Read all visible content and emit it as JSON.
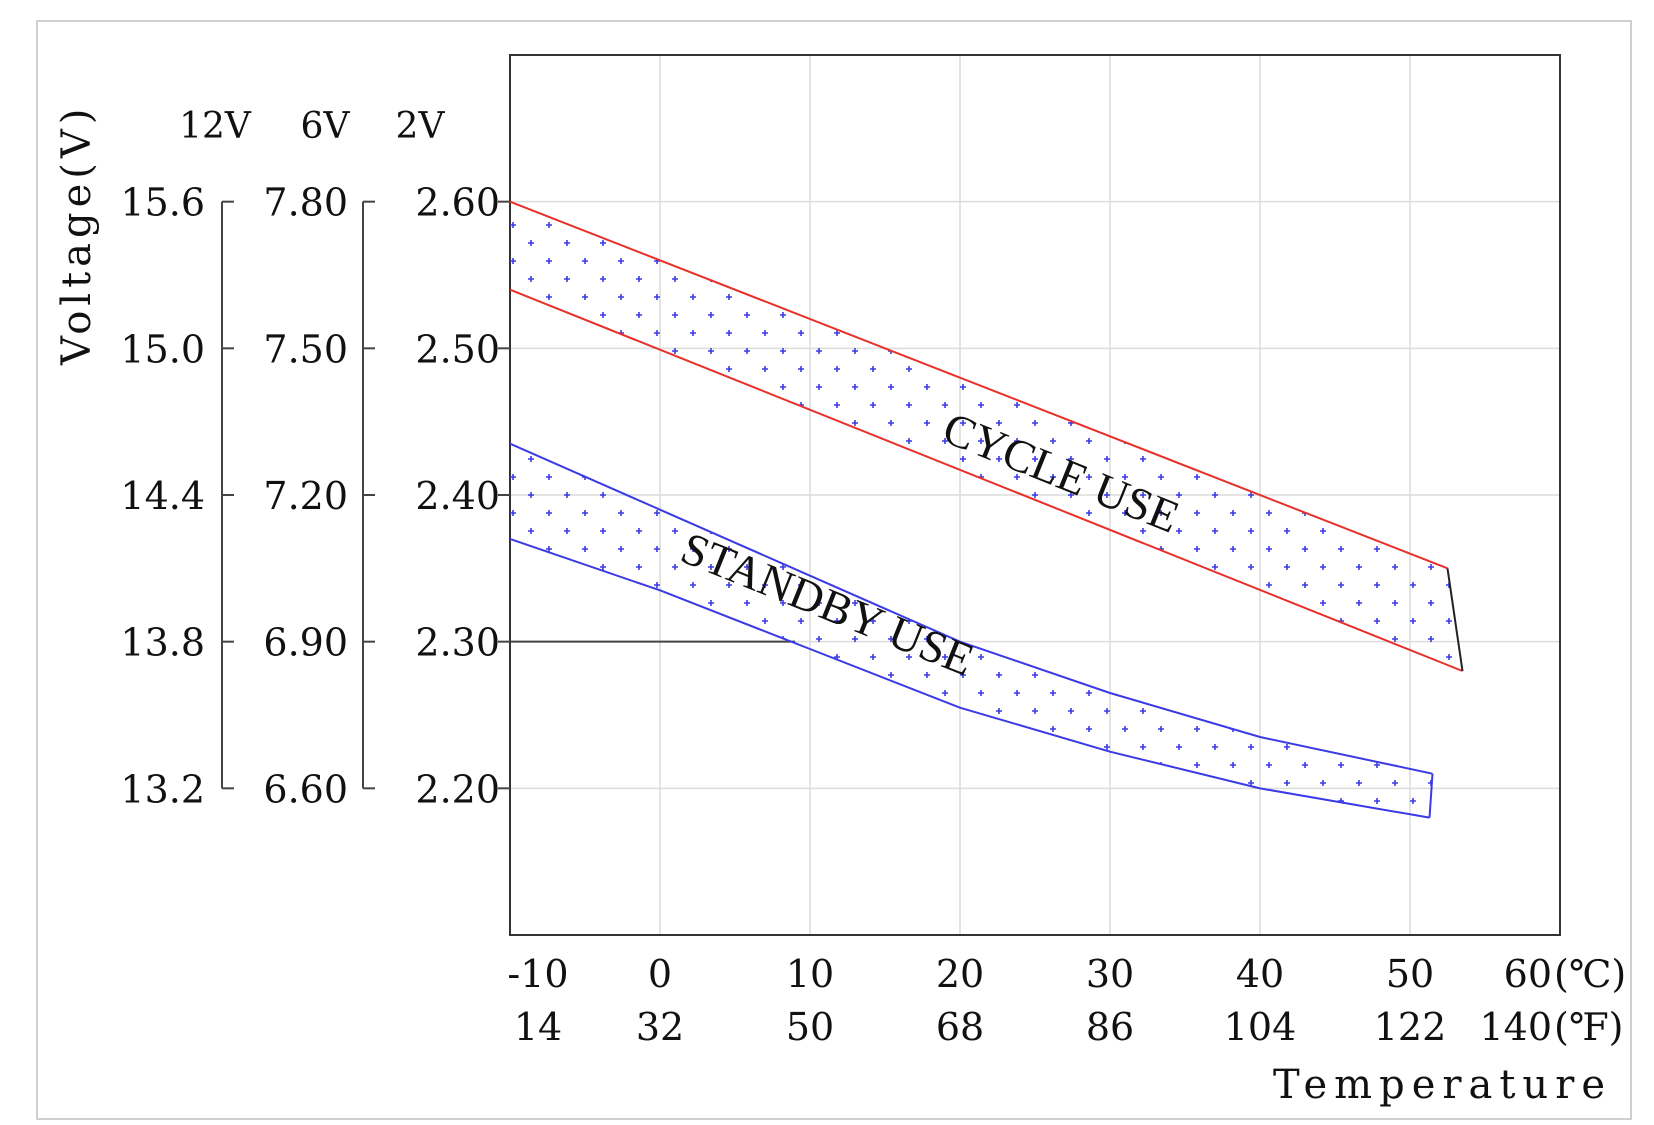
{
  "chart_data": {
    "type": "area",
    "ylabel": "Voltage(V)",
    "xlabel": "Temperature",
    "y_system_labels": [
      "12V",
      "6V",
      "2V"
    ],
    "y_ticks": {
      "v12": [
        "15.6",
        "15.0",
        "14.4",
        "13.8",
        "13.2"
      ],
      "v6": [
        "7.80",
        "7.50",
        "7.20",
        "6.90",
        "6.60"
      ],
      "v2": [
        "2.60",
        "2.50",
        "2.40",
        "2.30",
        "2.20"
      ]
    },
    "y_tick_values": [
      2.6,
      2.5,
      2.4,
      2.3,
      2.2
    ],
    "x_ticks_c": [
      "-10",
      "0",
      "10",
      "20",
      "30",
      "40",
      "50",
      "60"
    ],
    "x_unit_c": "(℃)",
    "x_ticks_f": [
      "14",
      "32",
      "50",
      "68",
      "86",
      "104",
      "122",
      "140"
    ],
    "x_unit_f": "(℉)",
    "xlim": [
      -10,
      60
    ],
    "ylim": [
      2.1,
      2.7
    ],
    "grid": true,
    "reference_line": {
      "y": 2.3,
      "x_from": -10,
      "x_to": 9
    },
    "series": [
      {
        "name": "CYCLE USE",
        "color": "#e8302a",
        "upper": {
          "x": [
            -10,
            52.5
          ],
          "y": [
            2.6,
            2.35
          ]
        },
        "lower": {
          "x": [
            -10,
            53.5
          ],
          "y": [
            2.54,
            2.28
          ]
        }
      },
      {
        "name": "STANDBY USE",
        "color": "#3a3ae6",
        "upper": {
          "x": [
            -10,
            0,
            10,
            20,
            30,
            40,
            51.5
          ],
          "y": [
            2.435,
            2.39,
            2.345,
            2.3,
            2.265,
            2.235,
            2.21
          ]
        },
        "lower": {
          "x": [
            -10,
            0,
            10,
            20,
            30,
            40,
            51.3
          ],
          "y": [
            2.37,
            2.335,
            2.295,
            2.255,
            2.225,
            2.2,
            2.18
          ]
        }
      }
    ],
    "dot_color": "#3a3ae6"
  }
}
